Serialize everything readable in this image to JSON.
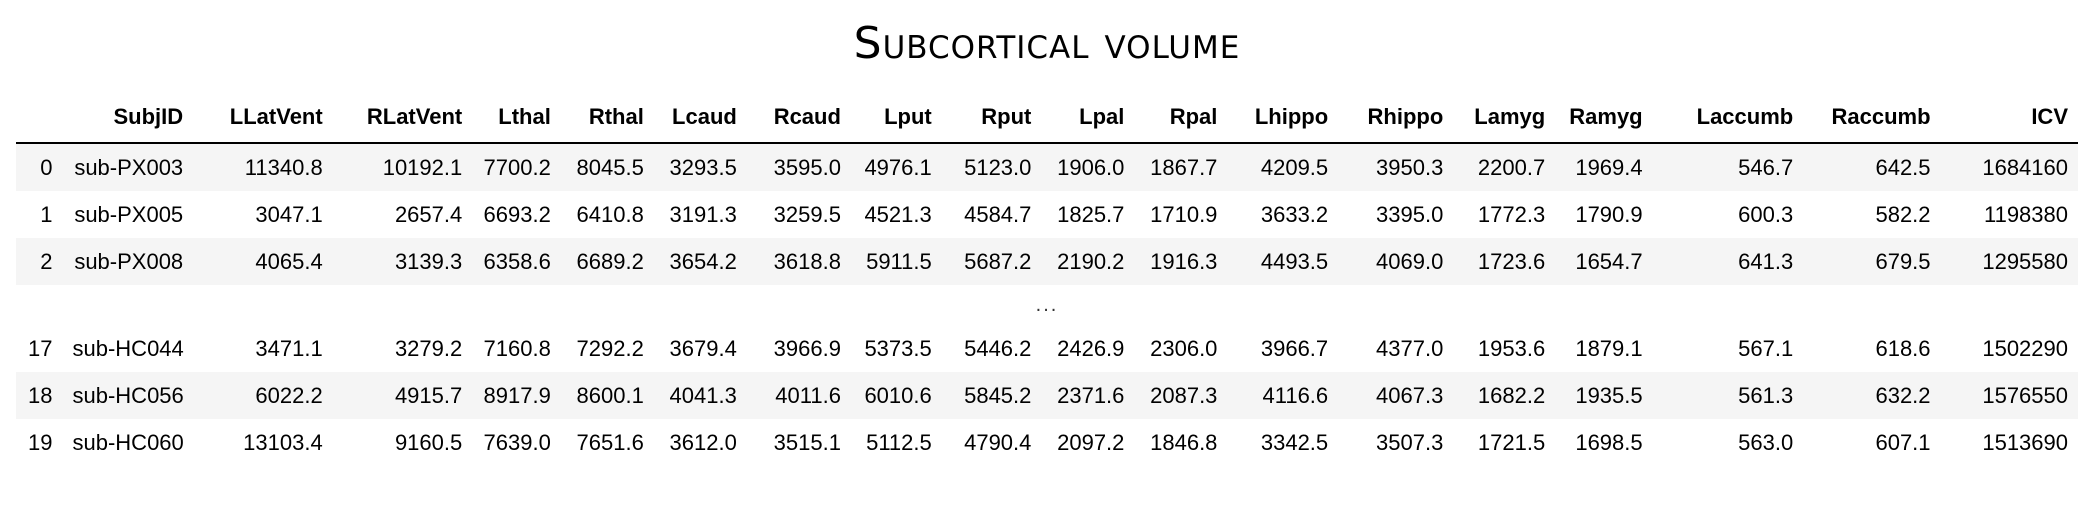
{
  "title": "Subcortical volume",
  "table": {
    "columns": [
      "",
      "SubjID",
      "LLatVent",
      "RLatVent",
      "Lthal",
      "Rthal",
      "Lcaud",
      "Rcaud",
      "Lput",
      "Rput",
      "Lpal",
      "Rpal",
      "Lhippo",
      "Rhippo",
      "Lamyg",
      "Ramyg",
      "Laccumb",
      "Raccumb",
      "ICV"
    ],
    "rows_top": [
      [
        "0",
        "sub-PX003",
        "11340.8",
        "10192.1",
        "7700.2",
        "8045.5",
        "3293.5",
        "3595.0",
        "4976.1",
        "5123.0",
        "1906.0",
        "1867.7",
        "4209.5",
        "3950.3",
        "2200.7",
        "1969.4",
        "546.7",
        "642.5",
        "1684160"
      ],
      [
        "1",
        "sub-PX005",
        "3047.1",
        "2657.4",
        "6693.2",
        "6410.8",
        "3191.3",
        "3259.5",
        "4521.3",
        "4584.7",
        "1825.7",
        "1710.9",
        "3633.2",
        "3395.0",
        "1772.3",
        "1790.9",
        "600.3",
        "582.2",
        "1198380"
      ],
      [
        "2",
        "sub-PX008",
        "4065.4",
        "3139.3",
        "6358.6",
        "6689.2",
        "3654.2",
        "3618.8",
        "5911.5",
        "5687.2",
        "2190.2",
        "1916.3",
        "4493.5",
        "4069.0",
        "1723.6",
        "1654.7",
        "641.3",
        "679.5",
        "1295580"
      ]
    ],
    "ellipsis": "...",
    "rows_bottom": [
      [
        "17",
        "sub-HC044",
        "3471.1",
        "3279.2",
        "7160.8",
        "7292.2",
        "3679.4",
        "3966.9",
        "5373.5",
        "5446.2",
        "2426.9",
        "2306.0",
        "3966.7",
        "4377.0",
        "1953.6",
        "1879.1",
        "567.1",
        "618.6",
        "1502290"
      ],
      [
        "18",
        "sub-HC056",
        "6022.2",
        "4915.7",
        "8917.9",
        "8600.1",
        "4041.3",
        "4011.6",
        "6010.6",
        "5845.2",
        "2371.6",
        "2087.3",
        "4116.6",
        "4067.3",
        "1682.2",
        "1935.5",
        "561.3",
        "632.2",
        "1576550"
      ],
      [
        "19",
        "sub-HC060",
        "13103.4",
        "9160.5",
        "7639.0",
        "7651.6",
        "3612.0",
        "3515.1",
        "5112.5",
        "4790.4",
        "2097.2",
        "1846.8",
        "3342.5",
        "3507.3",
        "1721.5",
        "1698.5",
        "563.0",
        "607.1",
        "1513690"
      ]
    ]
  }
}
